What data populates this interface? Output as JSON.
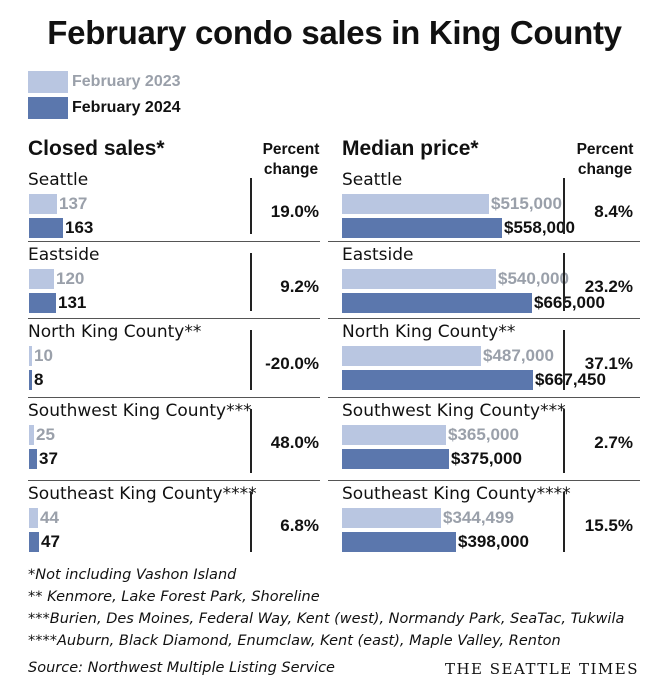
{
  "title": "February condo sales in King County",
  "legend": [
    {
      "label": "February 2023",
      "color": "#b9c6e1",
      "text_color": "#9aa0aa"
    },
    {
      "label": "February 2024",
      "color": "#5b77ad",
      "text_color": "#111111"
    }
  ],
  "left_header": "Closed sales*",
  "right_header": "Median price*",
  "percent_change_header": "Percent change",
  "chart_data": [
    {
      "type": "bar",
      "title": "Closed sales*",
      "categories": [
        "Seattle",
        "Eastside",
        "North King County**",
        "Southwest King County***",
        "Southeast King County****"
      ],
      "series": [
        {
          "name": "February 2023",
          "values": [
            137,
            120,
            10,
            25,
            44
          ],
          "labels": [
            "137",
            "120",
            "10",
            "25",
            "44"
          ]
        },
        {
          "name": "February 2024",
          "values": [
            163,
            131,
            8,
            37,
            47
          ],
          "labels": [
            "163",
            "131",
            "8",
            "37",
            "47"
          ]
        }
      ],
      "percent_change": [
        "19.0%",
        "9.2%",
        "-20.0%",
        "48.0%",
        "6.8%"
      ],
      "xlim": [
        0,
        200
      ]
    },
    {
      "type": "bar",
      "title": "Median price*",
      "categories": [
        "Seattle",
        "Eastside",
        "North King County**",
        "Southwest King County***",
        "Southeast King County****"
      ],
      "series": [
        {
          "name": "February 2023",
          "values": [
            515000,
            540000,
            487000,
            365000,
            344499
          ],
          "labels": [
            "$515,000",
            "$540,000",
            "$487,000",
            "$365,000",
            "$344,499"
          ]
        },
        {
          "name": "February 2024",
          "values": [
            558000,
            665000,
            667450,
            375000,
            398000
          ],
          "labels": [
            "$558,000",
            "$665,000",
            "$667,450",
            "$375,000",
            "$398,000"
          ]
        }
      ],
      "percent_change": [
        "8.4%",
        "23.2%",
        "37.1%",
        "2.7%",
        "15.5%"
      ],
      "xlim": [
        0,
        800000
      ]
    }
  ],
  "notes": [
    "*Not including Vashon Island",
    "** Kenmore, Lake Forest Park, Shoreline",
    "***Burien, Des Moines, Federal Way, Kent (west), Normandy Park, SeaTac, Tukwila",
    "****Auburn, Black Diamond, Enumclaw, Kent (east), Maple Valley, Renton"
  ],
  "source": "Source: Northwest Multiple Listing Service",
  "brand": "THE SEATTLE TIMES"
}
